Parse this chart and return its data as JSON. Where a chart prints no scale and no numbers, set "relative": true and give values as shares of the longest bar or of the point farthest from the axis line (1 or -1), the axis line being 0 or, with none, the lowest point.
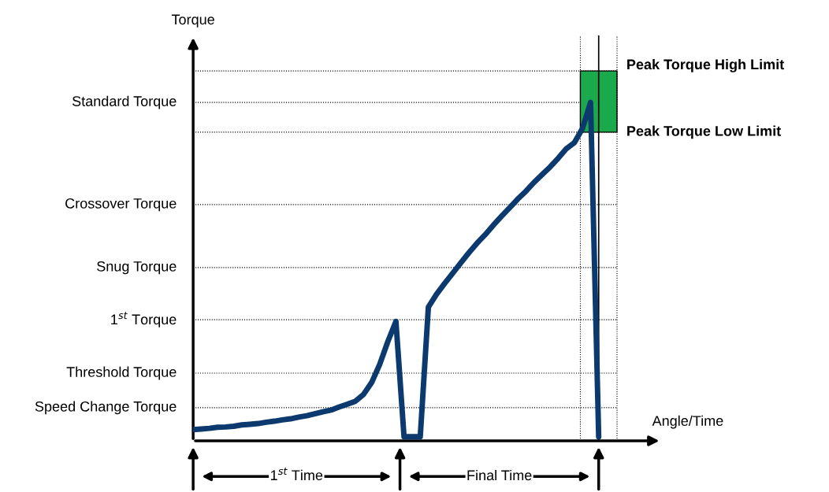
{
  "chart_data": {
    "type": "line",
    "relative": true,
    "xlabel": "Angle/Time",
    "categories": [
      null,
      null,
      null,
      null,
      null,
      null,
      null,
      null,
      null,
      null,
      null,
      null,
      null,
      null,
      null,
      null,
      null,
      null,
      null,
      null,
      null,
      null,
      null,
      null,
      null,
      null,
      null,
      null,
      null,
      null,
      null,
      null,
      null,
      null,
      null,
      null,
      null,
      null,
      null,
      null,
      null,
      null,
      null,
      null,
      null,
      null,
      null,
      null,
      null,
      null,
      null
    ],
    "series": [
      {
        "color": "#0d3a6e",
        "values": [
          0.033,
          0.035,
          0.037,
          0.04,
          0.041,
          0.043,
          0.047,
          0.049,
          0.051,
          0.055,
          0.058,
          0.062,
          0.065,
          0.07,
          0.074,
          0.08,
          0.086,
          0.091,
          0.1,
          0.108,
          0.117,
          0.137,
          0.172,
          0.226,
          0.293,
          0.353,
          0.012,
          0.012,
          0.012,
          0.395,
          0.433,
          0.465,
          0.495,
          0.526,
          0.556,
          0.584,
          0.609,
          0.637,
          0.663,
          0.688,
          0.714,
          0.737,
          0.763,
          0.786,
          0.809,
          0.835,
          0.863,
          0.881,
          0.923,
          1.0,
          0.012
        ]
      }
    ],
    "ref_lines": [
      {
        "axis": "y",
        "value": 1.093,
        "label": "Peak Torque High Limit",
        "line_style": "dotted",
        "color": "#000000"
      },
      {
        "axis": "y",
        "value": 1.0,
        "label": "Standard Torque",
        "line_style": "dotted",
        "color": "#000000"
      },
      {
        "axis": "y",
        "value": 0.912,
        "label": "Peak Torque Low Limit",
        "line_style": "dotted",
        "color": "#000000"
      },
      {
        "axis": "y",
        "value": 0.698,
        "label": "Crossover Torque",
        "line_style": "dotted",
        "color": "#000000"
      },
      {
        "axis": "y",
        "value": 0.512,
        "label": "Snug Torque",
        "line_style": "dotted",
        "color": "#000000"
      },
      {
        "axis": "y",
        "value": 0.358,
        "label": "1$^{st}$ Torque",
        "line_style": "dotted",
        "color": "#000000"
      },
      {
        "axis": "y",
        "value": 0.2,
        "label": "Threshold Torque",
        "line_style": "dotted",
        "color": "#000000"
      },
      {
        "axis": "y",
        "value": 0.098,
        "label": "Speed Change Torque",
        "line_style": "dotted",
        "color": "#000000"
      }
    ],
    "bands": [
      {
        "axis": "y",
        "from": 0.912,
        "to": 1.093,
        "color": "#1aaa4b"
      }
    ],
    "annotations": [
      "Torque",
      "1$^{st}$ Time",
      "Final Time"
    ]
  }
}
